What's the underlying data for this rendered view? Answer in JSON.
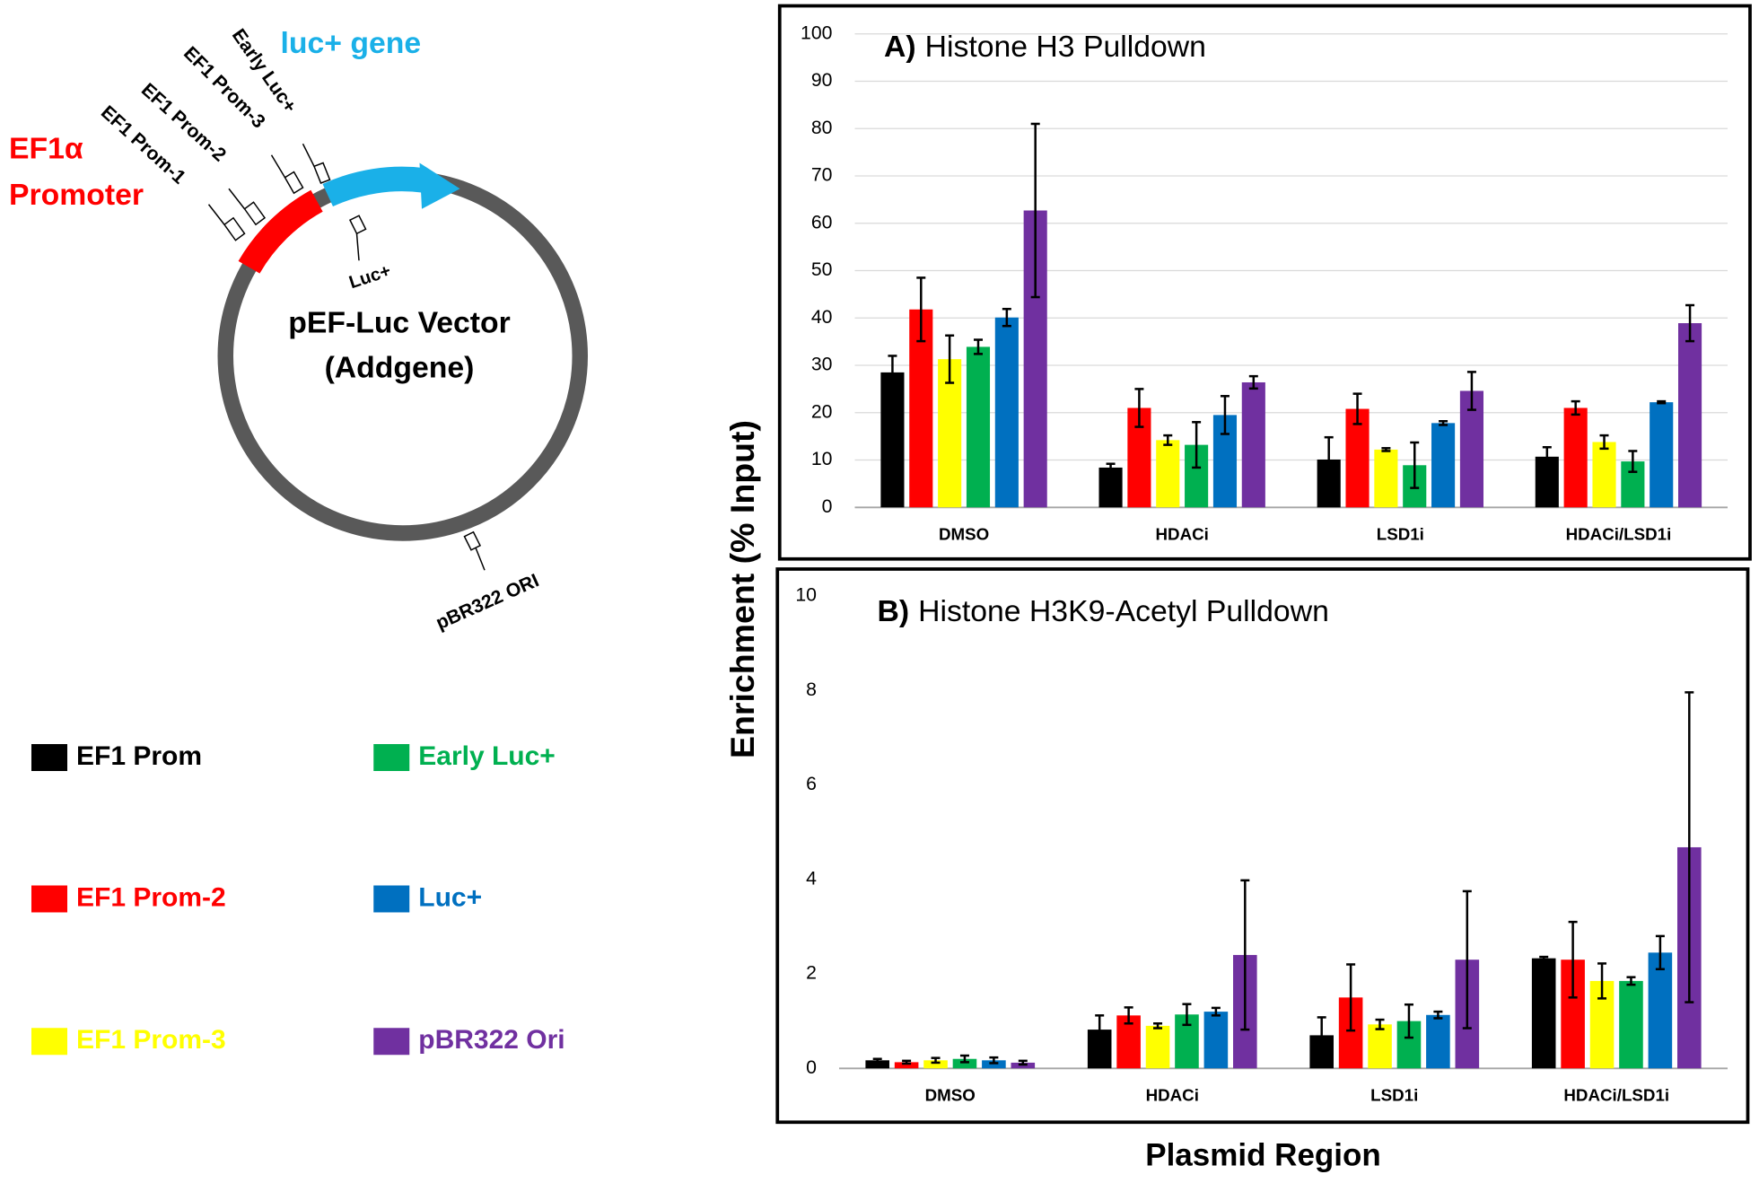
{
  "diagram": {
    "vector_name": "pEF-Luc Vector",
    "vector_source": "(Addgene)",
    "promoter_line1": "EF1α",
    "promoter_line2": "Promoter",
    "gene_label": "luc+ gene",
    "sites": [
      "EF1 Prom-1",
      "EF1 Prom-2",
      "EF1 Prom-3",
      "Early Luc+"
    ],
    "luc_site": "Luc+",
    "ori_site": "pBR322 ORI"
  },
  "shared_axes": {
    "ylabel": "Enrichment (% Input)",
    "xlabel": "Plasmid Region"
  },
  "chart_data": [
    {
      "type": "bar",
      "panel": "A)",
      "title": "Histone H3 Pulldown",
      "categories": [
        "DMSO",
        "HDACi",
        "LSD1i",
        "HDACi/LSD1i"
      ],
      "ylim": [
        0,
        100
      ],
      "yticks": [
        0,
        10,
        20,
        30,
        40,
        50,
        60,
        70,
        80,
        90,
        100
      ],
      "grid": true,
      "series": [
        {
          "name": "EF1 Prom",
          "color": "#000000",
          "values": [
            28.5,
            8.4,
            10.1,
            10.7
          ],
          "errors": [
            3.5,
            0.8,
            4.7,
            2
          ]
        },
        {
          "name": "EF1 Prom-2",
          "color": "#ff0000",
          "values": [
            41.8,
            21,
            20.8,
            21
          ],
          "errors": [
            6.7,
            4,
            3.2,
            1.4
          ]
        },
        {
          "name": "EF1 Prom-3",
          "color": "#ffff00",
          "values": [
            31.3,
            14.2,
            12.2,
            13.8
          ],
          "errors": [
            5,
            1,
            0.3,
            1.4
          ]
        },
        {
          "name": "Early Luc+",
          "color": "#00b050",
          "values": [
            33.9,
            13.2,
            8.9,
            9.7
          ],
          "errors": [
            1.5,
            4.8,
            4.8,
            2.2
          ]
        },
        {
          "name": "Luc+",
          "color": "#0070c0",
          "values": [
            40.1,
            19.5,
            17.8,
            22.2
          ],
          "errors": [
            1.8,
            4,
            0.4,
            0.2
          ]
        },
        {
          "name": "pBR322 Ori",
          "color": "#7030a0",
          "values": [
            62.7,
            26.4,
            24.6,
            38.9
          ],
          "errors": [
            18.3,
            1.3,
            4,
            3.8
          ]
        }
      ]
    },
    {
      "type": "bar",
      "panel": "B)",
      "title": "Histone H3K9-Acetyl Pulldown",
      "categories": [
        "DMSO",
        "HDACi",
        "LSD1i",
        "HDACi/LSD1i"
      ],
      "ylim": [
        0,
        10
      ],
      "yticks": [
        0,
        2,
        4,
        6,
        8,
        10
      ],
      "grid": false,
      "series": [
        {
          "color": "#000000",
          "values": [
            0.17,
            0.82,
            0.7,
            2.33
          ],
          "errors": [
            0.03,
            0.3,
            0.38,
            0.03
          ]
        },
        {
          "color": "#ff0000",
          "values": [
            0.13,
            1.12,
            1.5,
            2.3
          ],
          "errors": [
            0.03,
            0.17,
            0.7,
            0.8
          ]
        },
        {
          "color": "#ffff00",
          "values": [
            0.17,
            0.9,
            0.93,
            1.85
          ],
          "errors": [
            0.05,
            0.05,
            0.1,
            0.37
          ]
        },
        {
          "color": "#00b050",
          "values": [
            0.2,
            1.14,
            1.0,
            1.85
          ],
          "errors": [
            0.07,
            0.22,
            0.35,
            0.08
          ]
        },
        {
          "color": "#0070c0",
          "values": [
            0.17,
            1.2,
            1.13,
            2.45
          ],
          "errors": [
            0.06,
            0.08,
            0.07,
            0.35
          ]
        },
        {
          "color": "#7030a0",
          "values": [
            0.12,
            2.4,
            2.3,
            4.68
          ],
          "errors": [
            0.04,
            1.58,
            1.45,
            3.28
          ]
        }
      ]
    }
  ]
}
